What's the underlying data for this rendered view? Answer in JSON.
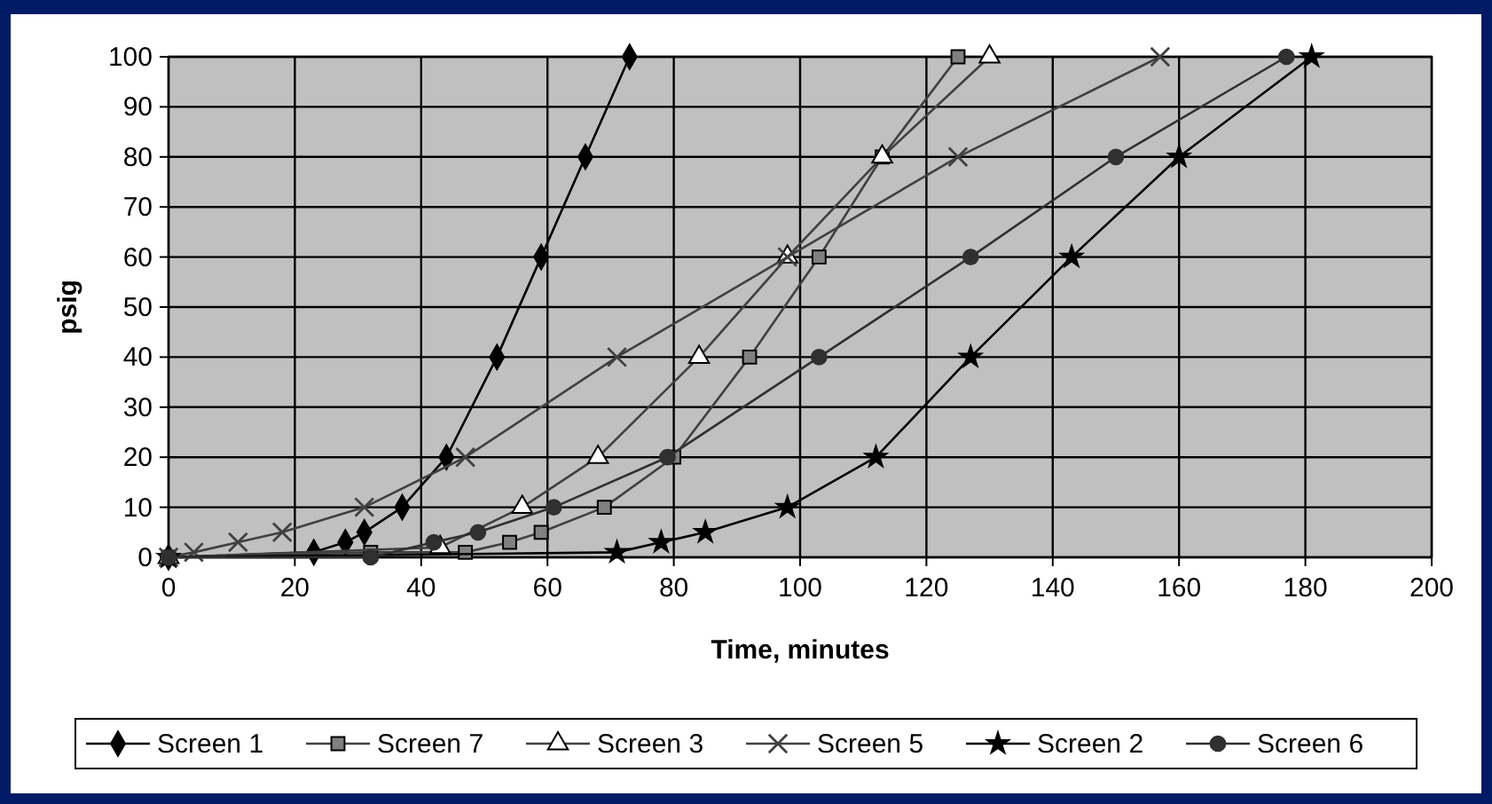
{
  "chart_data": {
    "type": "line",
    "xlabel": "Time, minutes",
    "ylabel": "psig",
    "xlim": [
      0,
      200
    ],
    "xticks": [
      0,
      20,
      40,
      60,
      80,
      100,
      120,
      140,
      160,
      180,
      200
    ],
    "ylim": [
      0,
      100
    ],
    "yticks": [
      0,
      10,
      20,
      30,
      40,
      50,
      60,
      70,
      80,
      90,
      100
    ],
    "grid": true,
    "legend": "bottom",
    "line_style": "solid",
    "series": [
      {
        "name": "Screen 1",
        "color": "#000000",
        "marker": "diamond",
        "x": [
          0,
          23,
          28,
          31,
          37,
          44,
          52,
          59,
          66,
          73
        ],
        "values": [
          0,
          1,
          3,
          5,
          10,
          20,
          40,
          60,
          80,
          100
        ]
      },
      {
        "name": "Screen 7",
        "color": "#808080",
        "marker": "square",
        "x": [
          0,
          32,
          47,
          54,
          59,
          69,
          80,
          92,
          103,
          113,
          125
        ],
        "values": [
          0,
          1,
          1,
          3,
          5,
          10,
          20,
          40,
          60,
          80,
          100
        ]
      },
      {
        "name": "Screen 3",
        "color": "#ffffff",
        "marker": "triangle",
        "x": [
          0,
          43,
          56,
          68,
          84,
          98,
          113,
          130
        ],
        "values": [
          0,
          2,
          10,
          20,
          40,
          60,
          80,
          100
        ]
      },
      {
        "name": "Screen 5",
        "color": "#404040",
        "marker": "cross",
        "x": [
          0,
          4,
          11,
          18,
          31,
          47,
          71,
          98,
          125,
          157
        ],
        "values": [
          0,
          1,
          3,
          5,
          10,
          20,
          40,
          60,
          80,
          100
        ]
      },
      {
        "name": "Screen 2",
        "color": "#000000",
        "marker": "star",
        "x": [
          0,
          71,
          78,
          85,
          98,
          112,
          127,
          143,
          160,
          181
        ],
        "values": [
          0,
          1,
          3,
          5,
          10,
          20,
          40,
          60,
          80,
          100
        ]
      },
      {
        "name": "Screen 6",
        "color": "#303030",
        "marker": "circle",
        "x": [
          0,
          32,
          42,
          49,
          61,
          79,
          103,
          127,
          150,
          177
        ],
        "values": [
          0,
          0,
          3,
          5,
          10,
          20,
          40,
          60,
          80,
          100
        ]
      }
    ]
  }
}
